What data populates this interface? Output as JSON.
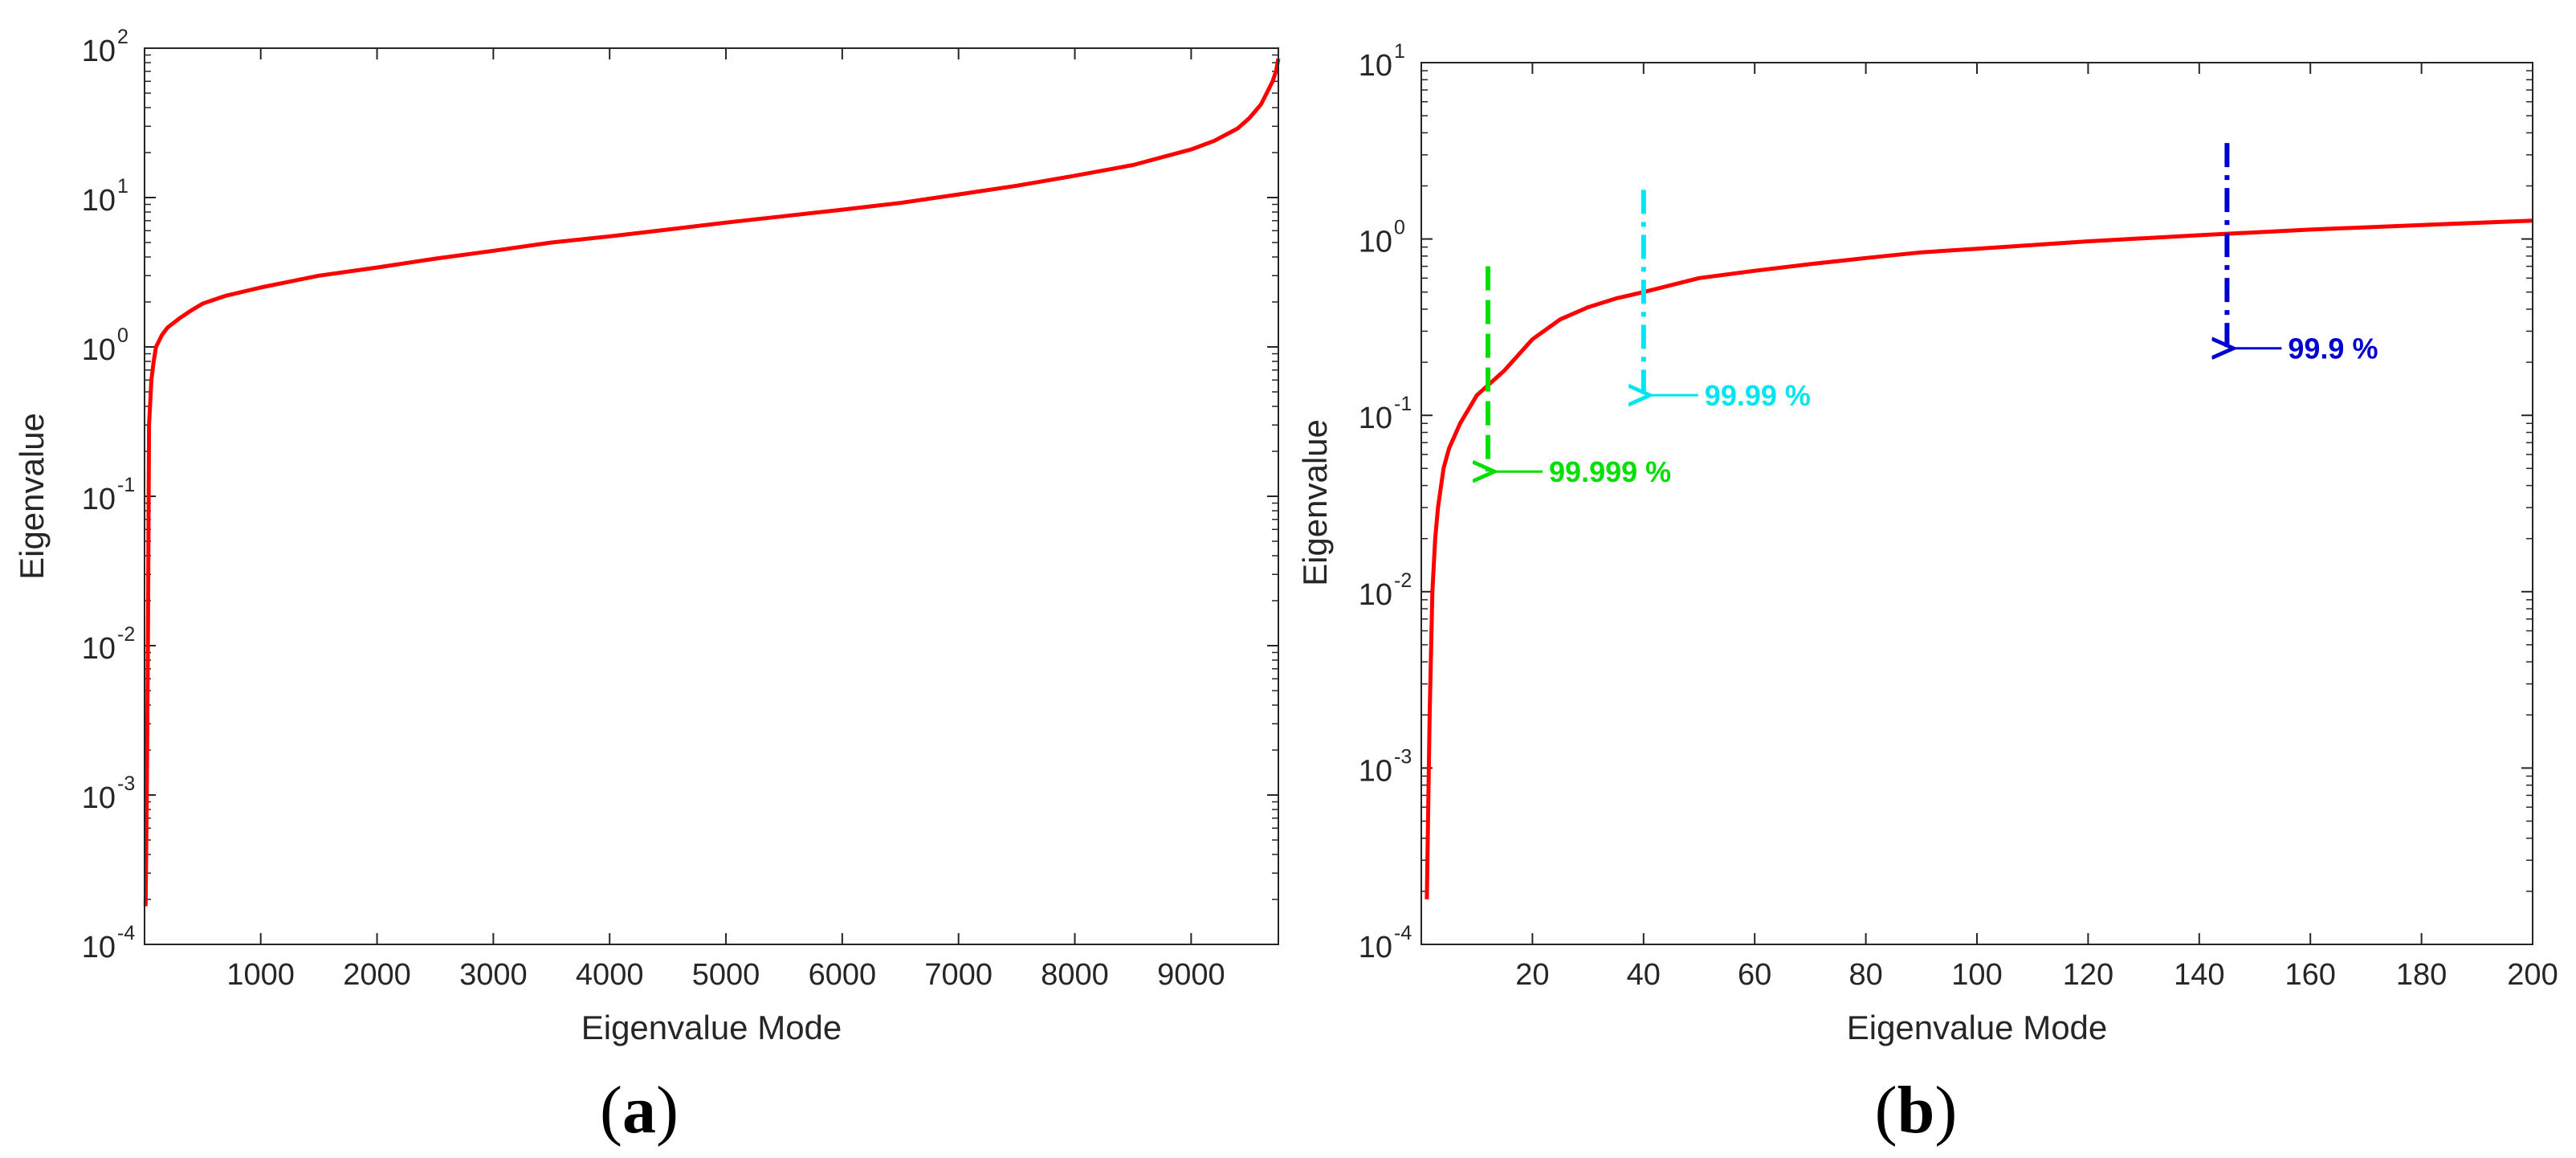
{
  "chart_data": [
    {
      "panel_label": "a",
      "type": "line",
      "xlabel": "Eigenvalue Mode",
      "ylabel": "Eigenvalue",
      "xlim": [
        1,
        9750
      ],
      "ylim": [
        0.0001,
        100
      ],
      "yscale": "log",
      "grid": false,
      "xticks": [
        1000,
        2000,
        3000,
        4000,
        5000,
        6000,
        7000,
        8000,
        9000
      ],
      "xtick_labels": [
        "1000",
        "2000",
        "3000",
        "4000",
        "5000",
        "6000",
        "7000",
        "8000",
        "9000"
      ],
      "yticks": [
        {
          "value": 0.0001,
          "base": "10",
          "exp": "-4"
        },
        {
          "value": 0.001,
          "base": "10",
          "exp": "-3"
        },
        {
          "value": 0.01,
          "base": "10",
          "exp": "-2"
        },
        {
          "value": 0.1,
          "base": "10",
          "exp": "-1"
        },
        {
          "value": 1,
          "base": "10",
          "exp": "0"
        },
        {
          "value": 10,
          "base": "10",
          "exp": "1"
        },
        {
          "value": 100,
          "base": "10",
          "exp": "2"
        }
      ],
      "series": [
        {
          "color": "#ff0000",
          "x": [
            10,
            20,
            30,
            40,
            60,
            80,
            100,
            150,
            200,
            300,
            400,
            500,
            700,
            1000,
            1500,
            2000,
            2500,
            3000,
            3500,
            4000,
            4500,
            5000,
            5500,
            6000,
            6500,
            7000,
            7500,
            8000,
            8500,
            9000,
            9200,
            9400,
            9500,
            9600,
            9650,
            9700,
            9730,
            9750
          ],
          "y": [
            0.00018,
            0.001,
            0.01,
            0.3,
            0.6,
            0.8,
            1.0,
            1.2,
            1.35,
            1.55,
            1.75,
            1.95,
            2.2,
            2.5,
            3.0,
            3.4,
            3.9,
            4.4,
            5.0,
            5.5,
            6.1,
            6.8,
            7.5,
            8.3,
            9.2,
            10.5,
            12.0,
            14.0,
            16.5,
            21.0,
            24.0,
            29.0,
            34.0,
            42.0,
            50.0,
            60.0,
            70.0,
            85.0
          ]
        }
      ]
    },
    {
      "panel_label": "b",
      "type": "line",
      "xlabel": "Eigenvalue Mode",
      "ylabel": "Eigenvalue",
      "xlim": [
        0,
        200
      ],
      "ylim": [
        0.0001,
        10
      ],
      "yscale": "log",
      "grid": false,
      "xticks": [
        20,
        40,
        60,
        80,
        100,
        120,
        140,
        160,
        180,
        200
      ],
      "xtick_labels": [
        "20",
        "40",
        "60",
        "80",
        "100",
        "120",
        "140",
        "160",
        "180",
        "200"
      ],
      "yticks": [
        {
          "value": 0.0001,
          "base": "10",
          "exp": "-4"
        },
        {
          "value": 0.001,
          "base": "10",
          "exp": "-3"
        },
        {
          "value": 0.01,
          "base": "10",
          "exp": "-2"
        },
        {
          "value": 0.1,
          "base": "10",
          "exp": "-1"
        },
        {
          "value": 1,
          "base": "10",
          "exp": "0"
        },
        {
          "value": 10,
          "base": "10",
          "exp": "1"
        }
      ],
      "series": [
        {
          "color": "#ff0000",
          "x": [
            1,
            1.5,
            2,
            2.5,
            3,
            4,
            5,
            7,
            10,
            15,
            20,
            25,
            30,
            35,
            40,
            50,
            60,
            70,
            80,
            90,
            100,
            120,
            140,
            160,
            180,
            200
          ],
          "y": [
            0.00018,
            0.002,
            0.01,
            0.02,
            0.03,
            0.05,
            0.065,
            0.09,
            0.13,
            0.18,
            0.27,
            0.35,
            0.41,
            0.46,
            0.5,
            0.6,
            0.66,
            0.72,
            0.78,
            0.84,
            0.88,
            0.97,
            1.05,
            1.13,
            1.2,
            1.27
          ]
        }
      ],
      "threshold_lines": [
        {
          "x": 12,
          "y_top": 0.7,
          "y_bottom": 0.048,
          "color": "#00e000",
          "dash": "dashed",
          "label": "99.999 %"
        },
        {
          "x": 40,
          "y_top": 1.9,
          "y_bottom": 0.13,
          "color": "#00e5ee",
          "dash": "dash-dot",
          "label": "99.99 %"
        },
        {
          "x": 145,
          "y_top": 3.5,
          "y_bottom": 0.24,
          "color": "#0000d0",
          "dash": "dash-dot",
          "label": "99.9 %"
        }
      ]
    }
  ],
  "captions": {
    "a": "(a)",
    "b": "(b)"
  }
}
